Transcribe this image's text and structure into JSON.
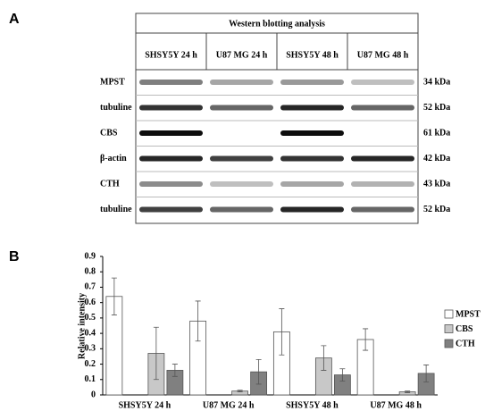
{
  "panel_labels": [
    "A",
    "B"
  ],
  "western_blot": {
    "title": "Western blotting analysis",
    "columns": [
      "SHSY5Y 24 h",
      "U87 MG 24 h",
      "SHSY5Y 48 h",
      "U87 MG 48 h"
    ],
    "rows": [
      {
        "label": "MPST",
        "size": "34 kDa"
      },
      {
        "label": "tubuline",
        "size": "52 kDa"
      },
      {
        "label": "CBS",
        "size": "61 kDa"
      },
      {
        "label": "β-actin",
        "size": "42 kDa"
      },
      {
        "label": "CTH",
        "size": "43 kDa"
      },
      {
        "label": "tubuline",
        "size": "52 kDa"
      }
    ]
  },
  "chart_data": {
    "type": "bar",
    "y_label": "Relative intensity",
    "categories": [
      "SHSY5Y 24 h",
      "U87 MG 24 h",
      "SHSY5Y 48 h",
      "U87 MG 48 h"
    ],
    "series": [
      {
        "name": "MPST",
        "color": "#ffffff",
        "values": [
          0.64,
          0.48,
          0.41,
          0.36
        ],
        "errors": [
          0.12,
          0.13,
          0.15,
          0.07
        ]
      },
      {
        "name": "CBS",
        "color": "#c8c8c8",
        "values": [
          0.27,
          0.025,
          0.24,
          0.02
        ],
        "errors": [
          0.17,
          0.005,
          0.08,
          0.005
        ]
      },
      {
        "name": "CTH",
        "color": "#808080",
        "values": [
          0.16,
          0.15,
          0.13,
          0.14
        ],
        "errors": [
          0.04,
          0.08,
          0.04,
          0.055
        ]
      }
    ],
    "ylim": [
      0,
      0.9
    ],
    "yticks": [
      0,
      0.1,
      0.2,
      0.3,
      0.4,
      0.5,
      0.6,
      0.7,
      0.8,
      0.9
    ],
    "grid": false,
    "legend": "right"
  }
}
